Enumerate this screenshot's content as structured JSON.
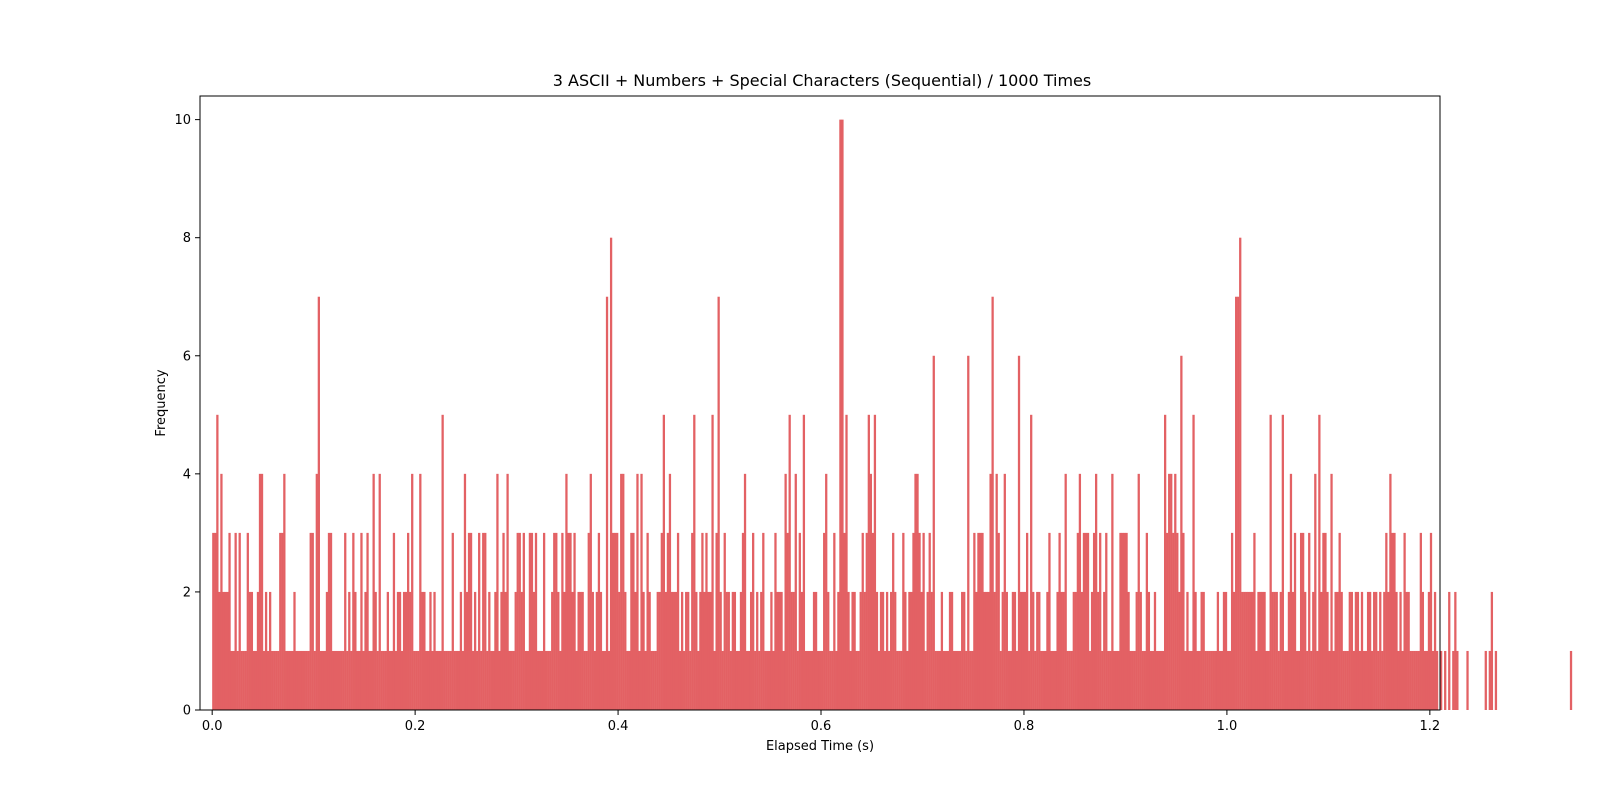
{
  "colors": {
    "bar": "#e36164",
    "axis": "#000000",
    "background": "#ffffff"
  },
  "chart_data": {
    "type": "bar",
    "title": "3 ASCII + Numbers + Special Characters (Sequential) / 1000 Times",
    "xlabel": "Elapsed Time (s)",
    "ylabel": "Frequency",
    "xlim": [
      -0.012,
      1.21
    ],
    "ylim": [
      0,
      10.4
    ],
    "xticks": [
      0.0,
      0.2,
      0.4,
      0.6,
      0.8,
      1.0,
      1.2
    ],
    "xtick_labels": [
      "0.0",
      "0.2",
      "0.4",
      "0.6",
      "0.8",
      "1.0",
      "1.2"
    ],
    "yticks": [
      0,
      2,
      4,
      6,
      8,
      10
    ],
    "ytick_labels": [
      "0",
      "2",
      "4",
      "6",
      "8",
      "10"
    ],
    "grid": false,
    "bin_start": 0.0,
    "bin_width": 0.002,
    "values": [
      3,
      3,
      5,
      2,
      4,
      2,
      2,
      2,
      3,
      1,
      1,
      3,
      1,
      3,
      1,
      1,
      1,
      3,
      2,
      2,
      1,
      1,
      2,
      4,
      4,
      1,
      2,
      1,
      2,
      1,
      1,
      1,
      1,
      3,
      3,
      4,
      1,
      1,
      1,
      1,
      2,
      1,
      1,
      1,
      1,
      1,
      1,
      1,
      3,
      3,
      1,
      4,
      7,
      1,
      1,
      1,
      2,
      3,
      3,
      1,
      1,
      1,
      1,
      1,
      1,
      3,
      1,
      2,
      1,
      3,
      2,
      1,
      1,
      3,
      1,
      2,
      3,
      1,
      1,
      4,
      2,
      1,
      4,
      1,
      1,
      1,
      2,
      1,
      1,
      3,
      1,
      2,
      2,
      1,
      2,
      2,
      3,
      2,
      4,
      1,
      1,
      1,
      4,
      2,
      2,
      1,
      1,
      2,
      1,
      2,
      1,
      1,
      1,
      5,
      1,
      1,
      1,
      1,
      3,
      1,
      1,
      1,
      2,
      1,
      4,
      2,
      3,
      3,
      1,
      2,
      1,
      3,
      1,
      3,
      3,
      1,
      2,
      1,
      1,
      2,
      4,
      1,
      2,
      3,
      2,
      4,
      1,
      1,
      1,
      2,
      3,
      3,
      2,
      3,
      1,
      1,
      3,
      3,
      2,
      3,
      1,
      1,
      1,
      3,
      1,
      1,
      1,
      2,
      3,
      3,
      2,
      1,
      3,
      2,
      4,
      3,
      3,
      2,
      3,
      1,
      2,
      2,
      2,
      1,
      1,
      3,
      4,
      2,
      1,
      2,
      3,
      2,
      1,
      1,
      7,
      1,
      8,
      3,
      3,
      3,
      2,
      4,
      4,
      2,
      1,
      1,
      3,
      3,
      2,
      4,
      1,
      4,
      2,
      1,
      3,
      2,
      1,
      1,
      1,
      2,
      2,
      3,
      5,
      2,
      3,
      4,
      2,
      2,
      2,
      3,
      1,
      2,
      1,
      2,
      2,
      1,
      3,
      5,
      2,
      1,
      2,
      3,
      2,
      3,
      2,
      2,
      5,
      1,
      3,
      7,
      2,
      1,
      3,
      2,
      2,
      1,
      2,
      2,
      1,
      1,
      2,
      3,
      4,
      1,
      1,
      2,
      3,
      1,
      2,
      1,
      2,
      3,
      1,
      1,
      1,
      2,
      1,
      3,
      2,
      2,
      2,
      1,
      4,
      3,
      5,
      2,
      2,
      4,
      1,
      3,
      2,
      5,
      1,
      1,
      1,
      1,
      2,
      2,
      1,
      1,
      1,
      3,
      4,
      2,
      1,
      1,
      3,
      1,
      2,
      10,
      10,
      3,
      5,
      2,
      1,
      2,
      2,
      1,
      1,
      2,
      3,
      2,
      3,
      5,
      4,
      3,
      5,
      2,
      1,
      2,
      2,
      1,
      2,
      1,
      2,
      3,
      2,
      1,
      1,
      1,
      3,
      2,
      1,
      2,
      2,
      3,
      4,
      4,
      3,
      2,
      3,
      1,
      2,
      3,
      2,
      6,
      1,
      1,
      1,
      2,
      1,
      1,
      1,
      2,
      2,
      1,
      1,
      1,
      1,
      2,
      2,
      1,
      6,
      1,
      1,
      3,
      2,
      3,
      3,
      3,
      2,
      2,
      2,
      4,
      7,
      2,
      4,
      3,
      1,
      2,
      4,
      2,
      1,
      1,
      2,
      2,
      1,
      6,
      2,
      2,
      2,
      3,
      1,
      5,
      2,
      1,
      2,
      2,
      1,
      1,
      1,
      2,
      3,
      1,
      1,
      1,
      2,
      3,
      2,
      2,
      4,
      1,
      1,
      1,
      2,
      2,
      3,
      4,
      2,
      3,
      3,
      3,
      1,
      2,
      3,
      4,
      2,
      3,
      1,
      2,
      3,
      1,
      1,
      4,
      1,
      1,
      1,
      3,
      3,
      3,
      3,
      2,
      1,
      1,
      1,
      2,
      4,
      2,
      1,
      1,
      3,
      2,
      1,
      1,
      2,
      1,
      1,
      1,
      1,
      5,
      3,
      4,
      4,
      3,
      4,
      3,
      2,
      6,
      3,
      1,
      2,
      1,
      1,
      5,
      2,
      1,
      1,
      2,
      2,
      1,
      1,
      1,
      1,
      1,
      1,
      2,
      1,
      1,
      2,
      2,
      1,
      1,
      3,
      2,
      7,
      7,
      8,
      2,
      2,
      2,
      2,
      2,
      2,
      3,
      1,
      2,
      2,
      2,
      2,
      1,
      1,
      5,
      2,
      2,
      2,
      1,
      2,
      5,
      1,
      1,
      2,
      4,
      2,
      3,
      1,
      1,
      3,
      3,
      2,
      1,
      3,
      1,
      2,
      4,
      1,
      5,
      2,
      3,
      3,
      2,
      1,
      4,
      1,
      2,
      2,
      3,
      2,
      1,
      1,
      1,
      2,
      2,
      1,
      2,
      2,
      1,
      2,
      1,
      1,
      2,
      2,
      1,
      2,
      2,
      1,
      2,
      1,
      2,
      3,
      2,
      4,
      3,
      3,
      2,
      1,
      2,
      1,
      3,
      2,
      2,
      1,
      1,
      1,
      1,
      1,
      3,
      2,
      1,
      1,
      2,
      3,
      1,
      2,
      1,
      0,
      1,
      0,
      1,
      0,
      2,
      0,
      1,
      2,
      1,
      0,
      0,
      0,
      0,
      1,
      0,
      0,
      0,
      0,
      0,
      0,
      0,
      0,
      1,
      0,
      1,
      2,
      0,
      1,
      0,
      0,
      0,
      0,
      0,
      0,
      0,
      0,
      0,
      0,
      0,
      0,
      0,
      0,
      0,
      0,
      0,
      0,
      0,
      0,
      0,
      0,
      0,
      0,
      0,
      0,
      0,
      0,
      0,
      0,
      0,
      0,
      0,
      0,
      0,
      0,
      1
    ]
  }
}
